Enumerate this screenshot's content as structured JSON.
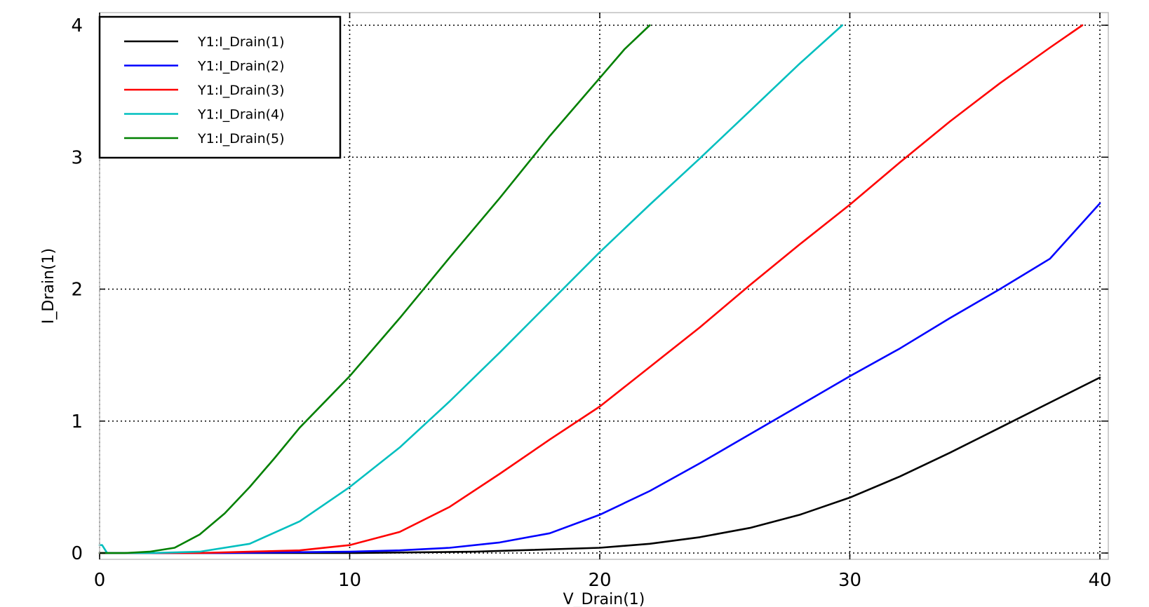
{
  "chart_data": {
    "type": "line",
    "xlabel": "V_Drain(1)",
    "ylabel": "I_Drain(1)",
    "xlim": [
      0,
      40
    ],
    "ylim": [
      0,
      4
    ],
    "xticks": [
      "0",
      "10",
      "20",
      "30",
      "40"
    ],
    "yticks": [
      "0",
      "1",
      "2",
      "3",
      "4"
    ],
    "grid": true,
    "legend_position": "top-left",
    "series": [
      {
        "name": "Y1:I_Drain(1)",
        "color": "#000000",
        "x": [
          0,
          5,
          10,
          15,
          20,
          22,
          24,
          26,
          28,
          30,
          32,
          34,
          36,
          38,
          40
        ],
        "y": [
          0,
          0,
          0,
          0.01,
          0.04,
          0.07,
          0.12,
          0.19,
          0.29,
          0.42,
          0.58,
          0.76,
          0.95,
          1.14,
          1.33
        ]
      },
      {
        "name": "Y1:I_Drain(2)",
        "color": "#0000ff",
        "x": [
          0,
          5,
          10,
          12,
          14,
          16,
          18,
          20,
          22,
          24,
          26,
          28,
          30,
          32,
          34,
          36,
          38,
          40
        ],
        "y": [
          0,
          0,
          0.01,
          0.02,
          0.04,
          0.08,
          0.15,
          0.29,
          0.47,
          0.68,
          0.9,
          1.12,
          1.34,
          1.55,
          1.78,
          2.0,
          2.23,
          2.65
        ]
      },
      {
        "name": "Y1:I_Drain(3)",
        "color": "#ff0000",
        "x": [
          0,
          4,
          6,
          8,
          10,
          12,
          14,
          16,
          18,
          20,
          22,
          24,
          26,
          28,
          30,
          32,
          34,
          36,
          38,
          39.3
        ],
        "y": [
          0,
          0,
          0.01,
          0.02,
          0.06,
          0.16,
          0.35,
          0.6,
          0.86,
          1.11,
          1.41,
          1.71,
          2.03,
          2.34,
          2.64,
          2.96,
          3.27,
          3.56,
          3.83,
          4.0
        ]
      },
      {
        "name": "Y1:I_Drain(4)",
        "color": "#00bfbf",
        "x": [
          0,
          0.1,
          0.3,
          2,
          4,
          6,
          8,
          10,
          12,
          14,
          16,
          18,
          20,
          22,
          24,
          26,
          28,
          29.7
        ],
        "y": [
          0.06,
          0.06,
          0,
          0,
          0.01,
          0.07,
          0.24,
          0.5,
          0.8,
          1.15,
          1.52,
          1.9,
          2.28,
          2.64,
          2.99,
          3.35,
          3.71,
          4.0
        ]
      },
      {
        "name": "Y1:I_Drain(5)",
        "color": "#008000",
        "x": [
          0,
          1,
          2,
          3,
          4,
          5,
          6,
          7,
          8,
          10,
          12,
          14,
          16,
          18,
          20,
          21,
          22
        ],
        "y": [
          0,
          0,
          0.01,
          0.04,
          0.14,
          0.3,
          0.5,
          0.72,
          0.95,
          1.34,
          1.78,
          2.24,
          2.69,
          3.16,
          3.6,
          3.82,
          4.0
        ]
      }
    ]
  }
}
